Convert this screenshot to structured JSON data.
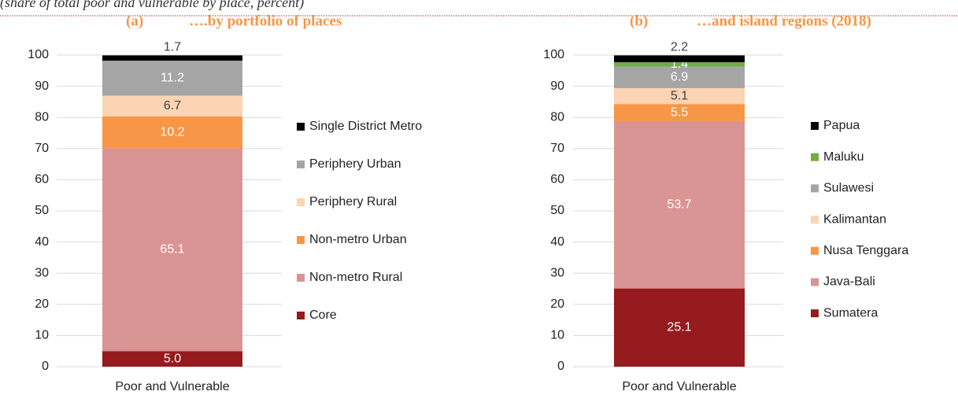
{
  "header": {
    "subtitle": "(share of total poor and vulnerable by place, percent)"
  },
  "chart_data": [
    {
      "type": "stacked_bar",
      "label": "(a)",
      "title": "….by portfolio of places",
      "categories": [
        "Poor and Vulnerable"
      ],
      "ylim": [
        0,
        100
      ],
      "yticks": [
        0,
        10,
        20,
        30,
        40,
        50,
        60,
        70,
        80,
        90,
        100
      ],
      "grid": true,
      "legend": "right",
      "series": [
        {
          "name": "Core",
          "color": "#951b1e",
          "values": [
            5
          ],
          "value_labels": [
            "5.0"
          ]
        },
        {
          "name": "Non-metro Rural",
          "color": "#d99594",
          "values": [
            65.1
          ]
        },
        {
          "name": "Non-metro Urban",
          "color": "#f79646",
          "values": [
            10.2
          ]
        },
        {
          "name": "Periphery Rural",
          "color": "#fbd4b4",
          "values": [
            6.7
          ]
        },
        {
          "name": "Periphery Urban",
          "color": "#a5a5a5",
          "values": [
            11.2
          ]
        },
        {
          "name": "Single District Metro",
          "color": "#000000",
          "values": [
            1.7
          ]
        }
      ]
    },
    {
      "type": "stacked_bar",
      "label": "(b)",
      "title": "…and island regions (2018)",
      "categories": [
        "Poor and Vulnerable"
      ],
      "ylim": [
        0,
        100
      ],
      "yticks": [
        0,
        10,
        20,
        30,
        40,
        50,
        60,
        70,
        80,
        90,
        100
      ],
      "grid": true,
      "legend": "right",
      "series": [
        {
          "name": "Sumatera",
          "color": "#951b1e",
          "values": [
            25.1
          ]
        },
        {
          "name": "Java-Bali",
          "color": "#d99594",
          "values": [
            53.7
          ]
        },
        {
          "name": "Nusa Tenggara",
          "color": "#f79646",
          "values": [
            5.5
          ]
        },
        {
          "name": "Kalimantan",
          "color": "#fbd4b4",
          "values": [
            5.1
          ]
        },
        {
          "name": "Sulawesi",
          "color": "#a5a5a5",
          "values": [
            6.9
          ]
        },
        {
          "name": "Maluku",
          "color": "#70ad47",
          "values": [
            1.4
          ]
        },
        {
          "name": "Papua",
          "color": "#000000",
          "values": [
            2.2
          ]
        }
      ]
    }
  ]
}
